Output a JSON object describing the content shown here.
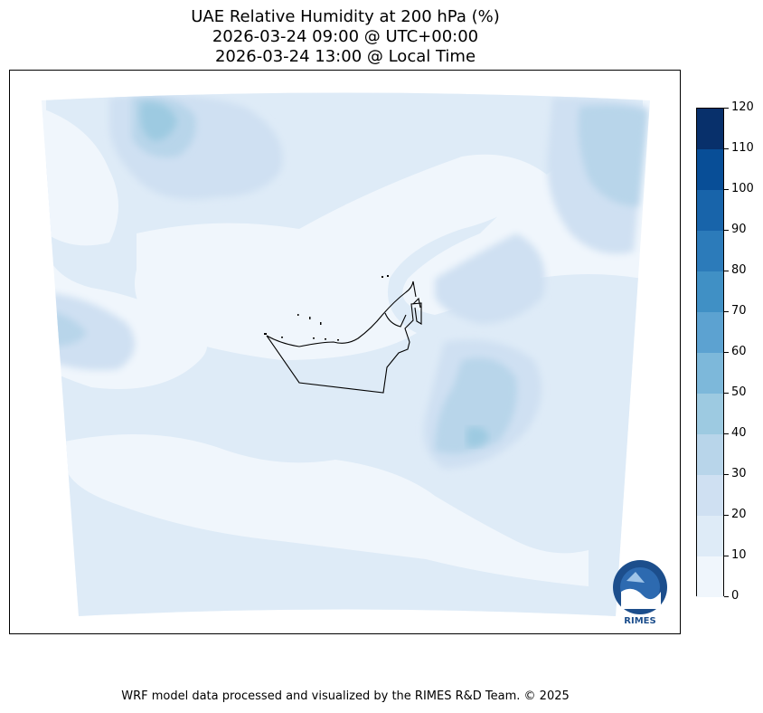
{
  "title": {
    "line1": "UAE Relative Humidity at 200 hPa (%)",
    "line2": "2026-03-24 09:00 @ UTC+00:00",
    "line3": "2026-03-24 13:00 @ Local Time"
  },
  "colorbar": {
    "ticks": [
      "0",
      "10",
      "20",
      "30",
      "40",
      "50",
      "60",
      "70",
      "80",
      "90",
      "100",
      "110",
      "120"
    ],
    "colors": [
      "#f0f6fc",
      "#deebf7",
      "#cfe0f2",
      "#b8d5ea",
      "#9dcae1",
      "#7db8da",
      "#5ca2d1",
      "#4090c5",
      "#2c7bba",
      "#1864aa",
      "#084e97",
      "#08306b"
    ]
  },
  "logo": {
    "text": "RIMES"
  },
  "footer": "WRF model data processed and visualized by the RIMES R&D Team. © 2025"
}
